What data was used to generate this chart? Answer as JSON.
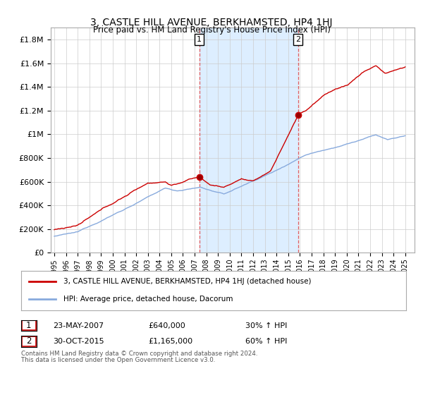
{
  "title": "3, CASTLE HILL AVENUE, BERKHAMSTED, HP4 1HJ",
  "subtitle": "Price paid vs. HM Land Registry's House Price Index (HPI)",
  "ylabel_ticks": [
    "£0",
    "£200K",
    "£400K",
    "£600K",
    "£800K",
    "£1M",
    "£1.2M",
    "£1.4M",
    "£1.6M",
    "£1.8M"
  ],
  "ytick_values": [
    0,
    200000,
    400000,
    600000,
    800000,
    1000000,
    1200000,
    1400000,
    1600000,
    1800000
  ],
  "ylim": [
    0,
    1900000
  ],
  "xlim_start": 1994.7,
  "xlim_end": 2025.8,
  "sale1_year": 2007.39,
  "sale1_price": 640000,
  "sale1_label": "1",
  "sale1_date": "23-MAY-2007",
  "sale1_hpi_pct": "30%",
  "sale2_year": 2015.83,
  "sale2_price": 1165000,
  "sale2_label": "2",
  "sale2_date": "30-OCT-2015",
  "sale2_hpi_pct": "60%",
  "line_color_property": "#cc0000",
  "line_color_hpi": "#88aadd",
  "shaded_region_color": "#ddeeff",
  "dashed_line_color": "#dd4444",
  "legend_label_property": "3, CASTLE HILL AVENUE, BERKHAMSTED, HP4 1HJ (detached house)",
  "legend_label_hpi": "HPI: Average price, detached house, Dacorum",
  "footnote1": "Contains HM Land Registry data © Crown copyright and database right 2024.",
  "footnote2": "This data is licensed under the Open Government Licence v3.0.",
  "background_color": "#ffffff",
  "plot_bg_color": "#ffffff",
  "grid_color": "#cccccc"
}
